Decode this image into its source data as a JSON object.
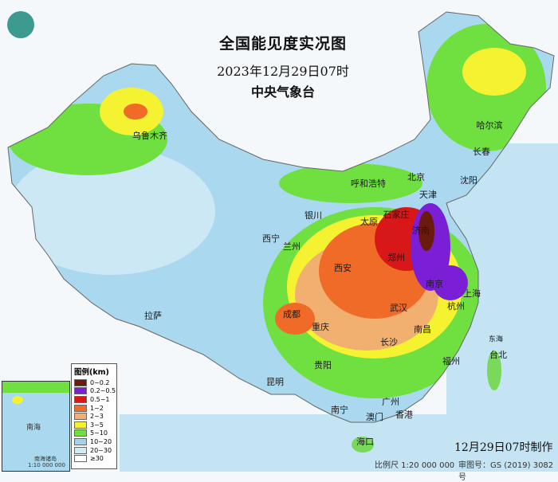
{
  "title": {
    "main": "全国能见度实况图",
    "datetime": "2023年12月29日07时",
    "issuer": "中央气象台"
  },
  "logo": {
    "icon": "cma-logo-icon"
  },
  "cities": [
    {
      "name": "乌鲁木齐"
    },
    {
      "name": "哈尔滨"
    },
    {
      "name": "长春"
    },
    {
      "name": "沈阳"
    },
    {
      "name": "呼和浩特"
    },
    {
      "name": "北京"
    },
    {
      "name": "天津"
    },
    {
      "name": "石家庄"
    },
    {
      "name": "太原"
    },
    {
      "name": "济南"
    },
    {
      "name": "银川"
    },
    {
      "name": "西宁"
    },
    {
      "name": "兰州"
    },
    {
      "name": "郑州"
    },
    {
      "name": "西安"
    },
    {
      "name": "南京"
    },
    {
      "name": "上海"
    },
    {
      "name": "杭州"
    },
    {
      "name": "武汉"
    },
    {
      "name": "成都"
    },
    {
      "name": "重庆"
    },
    {
      "name": "拉萨"
    },
    {
      "name": "长沙"
    },
    {
      "name": "南昌"
    },
    {
      "name": "贵阳"
    },
    {
      "name": "昆明"
    },
    {
      "name": "福州"
    },
    {
      "name": "台北"
    },
    {
      "name": "广州"
    },
    {
      "name": "南宁"
    },
    {
      "name": "澳门"
    },
    {
      "name": "香港"
    },
    {
      "name": "海口"
    },
    {
      "name": "东海"
    }
  ],
  "legend": {
    "title": "图例(km)",
    "items": [
      {
        "label": "0~0.2",
        "color": "#6b1a0e"
      },
      {
        "label": "0.2~0.5",
        "color": "#7a1fd6"
      },
      {
        "label": "0.5~1",
        "color": "#d81818"
      },
      {
        "label": "1~2",
        "color": "#f06a28"
      },
      {
        "label": "2~3",
        "color": "#f2b070"
      },
      {
        "label": "3~5",
        "color": "#f5f232"
      },
      {
        "label": "5~10",
        "color": "#6fe040"
      },
      {
        "label": "10~20",
        "color": "#9fd4ee"
      },
      {
        "label": "20~30",
        "color": "#d6eaf6"
      },
      {
        "label": "≥30",
        "color": "#ffffff"
      }
    ]
  },
  "inset": {
    "sea_label": "南海",
    "island_label": "南海诸岛",
    "scale": "1:10 000 000"
  },
  "footer": {
    "scale": "比例尺 1:20 000 000",
    "map_number": "审图号：GS (2019) 3082号",
    "made": "12月29日07时制作"
  }
}
